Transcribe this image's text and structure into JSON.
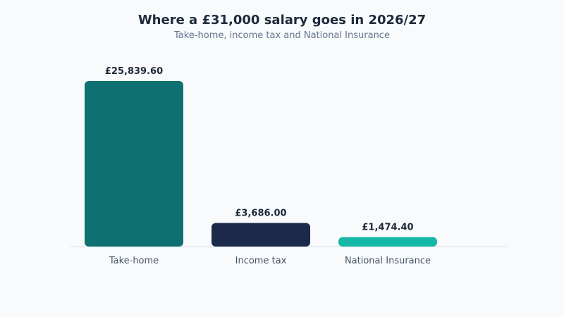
{
  "chart_data": {
    "type": "bar",
    "title": "Where a £31,000 salary goes in 2026/27",
    "subtitle": "Take-home, income tax and National Insurance",
    "categories": [
      "Take-home",
      "Income tax",
      "National Insurance"
    ],
    "values": [
      25839.6,
      3686.0,
      1474.4
    ],
    "value_labels": [
      "£25,839.60",
      "£3,686.00",
      "£1,474.40"
    ],
    "colors": [
      "#0e7070",
      "#1b2a4a",
      "#14b8a6"
    ],
    "ylim": [
      0,
      25839.6
    ],
    "grid": false,
    "legend": "none"
  }
}
